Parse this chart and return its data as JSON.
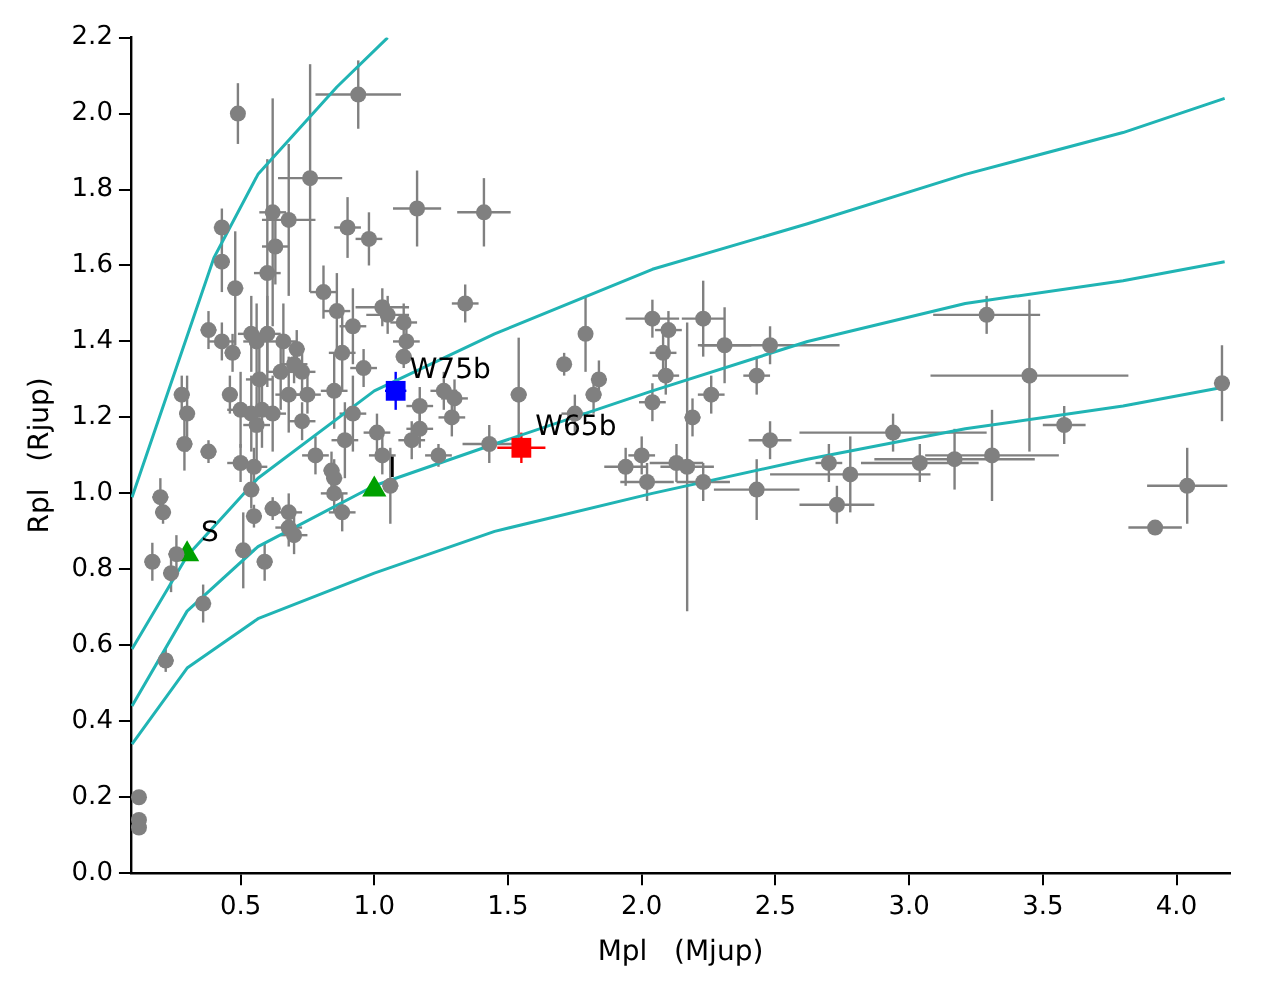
{
  "chart_data": {
    "type": "scatter",
    "xlabel": "Mpl   (Mjup)",
    "ylabel": "Rpl   (Rjup)",
    "xlim": [
      0.09,
      4.2
    ],
    "ylim": [
      0,
      2.2
    ],
    "xticks": [
      {
        "value": 0.5,
        "label": "0.5"
      },
      {
        "value": 1,
        "label": "1.0"
      },
      {
        "value": 1.5,
        "label": "1.5"
      },
      {
        "value": 2,
        "label": "2.0"
      },
      {
        "value": 2.5,
        "label": "2.5"
      },
      {
        "value": 3,
        "label": "3.0"
      },
      {
        "value": 3.5,
        "label": "3.5"
      },
      {
        "value": 4,
        "label": "4.0"
      }
    ],
    "yticks": [
      {
        "value": 0,
        "label": "0.0"
      },
      {
        "value": 0.2,
        "label": "0.2"
      },
      {
        "value": 0.4,
        "label": "0.4"
      },
      {
        "value": 0.6,
        "label": "0.6"
      },
      {
        "value": 0.8,
        "label": "0.8"
      },
      {
        "value": 1,
        "label": "1.0"
      },
      {
        "value": 1.2,
        "label": "1.2"
      },
      {
        "value": 1.4,
        "label": "1.4"
      },
      {
        "value": 1.6,
        "label": "1.6"
      },
      {
        "value": 1.8,
        "label": "1.8"
      },
      {
        "value": 2,
        "label": "2.0"
      },
      {
        "value": 2.2,
        "label": "2.2"
      }
    ],
    "grid": false,
    "legend": false,
    "series": [
      {
        "type": "line",
        "color": "#20b4b4",
        "marker": "none",
        "x": [
          0.094,
          0.4,
          0.565,
          0.86,
          1.05
        ],
        "values": [
          0.99,
          1.62,
          1.84,
          2.07,
          2.2
        ]
      },
      {
        "type": "line",
        "color": "#20b4b4",
        "marker": "none",
        "x": [
          0.094,
          0.3,
          0.565,
          1.0,
          1.45,
          2.04,
          2.62,
          3.21,
          3.8,
          4.18
        ],
        "values": [
          0.59,
          0.835,
          1.04,
          1.27,
          1.42,
          1.59,
          1.71,
          1.84,
          1.95,
          2.04
        ]
      },
      {
        "type": "line",
        "color": "#20b4b4",
        "marker": "none",
        "x": [
          0.094,
          0.3,
          0.565,
          1.0,
          1.45,
          2.04,
          2.62,
          3.21,
          3.8,
          4.18
        ],
        "values": [
          0.44,
          0.69,
          0.86,
          1.02,
          1.13,
          1.27,
          1.4,
          1.5,
          1.56,
          1.61
        ]
      },
      {
        "type": "line",
        "color": "#20b4b4",
        "marker": "none",
        "x": [
          0.094,
          0.3,
          0.565,
          1.0,
          1.45,
          2.04,
          2.62,
          3.21,
          3.8,
          4.18
        ],
        "values": [
          0.34,
          0.54,
          0.67,
          0.79,
          0.9,
          1.0,
          1.09,
          1.17,
          1.23,
          1.28
        ]
      },
      {
        "type": "scatter",
        "color": "#808080",
        "marker": "circle",
        "x": [
          0.49,
          0.94,
          0.76,
          1.16,
          1.41,
          0.43,
          0.62,
          0.68,
          0.9,
          0.98,
          0.63,
          0.43,
          0.6,
          0.48,
          0.81,
          1.34,
          0.38,
          0.86,
          1.03,
          1.05,
          0.92,
          1.11,
          0.54,
          0.56,
          0.43,
          0.47,
          0.6,
          0.66,
          0.71,
          1.12,
          1.11,
          0.88,
          0.96,
          0.7,
          0.73,
          0.65,
          0.57,
          0.46,
          0.28,
          0.68,
          0.75,
          0.85,
          1.26,
          1.3,
          0.5,
          0.54,
          0.58,
          0.62,
          0.3,
          1.17,
          1.29,
          0.92,
          1.01,
          1.17,
          1.14,
          0.56,
          0.73,
          0.29,
          0.38,
          0.78,
          0.89,
          0.5,
          0.55,
          0.84,
          0.85,
          1.03,
          1.24,
          1.43,
          1.54,
          0.54,
          0.85,
          1.06,
          0.55,
          0.62,
          0.68,
          0.88,
          0.68,
          0.7,
          0.2,
          0.21,
          0.17,
          0.26,
          0.24,
          0.51,
          0.59,
          0.36,
          0.22,
          0.12,
          0.12,
          0.12,
          1.71,
          1.79,
          1.82,
          1.84,
          1.75,
          2.04,
          2.1,
          2.23,
          2.31,
          2.08,
          2.09,
          2.04,
          2.26,
          2.19,
          2.48,
          2.43,
          2.48,
          1.94,
          2.0,
          2.02,
          2.13,
          2.17,
          2.23,
          2.43,
          2.7,
          2.73,
          2.78,
          2.94,
          3.04,
          3.17,
          3.31,
          3.29,
          3.45,
          3.58,
          4.04,
          3.92,
          4.17
        ],
        "values": [
          2.0,
          2.05,
          1.83,
          1.75,
          1.74,
          1.7,
          1.74,
          1.72,
          1.7,
          1.67,
          1.65,
          1.61,
          1.58,
          1.54,
          1.53,
          1.5,
          1.43,
          1.48,
          1.49,
          1.47,
          1.44,
          1.45,
          1.42,
          1.4,
          1.4,
          1.37,
          1.42,
          1.4,
          1.38,
          1.4,
          1.36,
          1.37,
          1.33,
          1.34,
          1.32,
          1.32,
          1.3,
          1.26,
          1.26,
          1.26,
          1.26,
          1.27,
          1.27,
          1.25,
          1.22,
          1.21,
          1.22,
          1.21,
          1.21,
          1.23,
          1.2,
          1.21,
          1.16,
          1.17,
          1.14,
          1.18,
          1.19,
          1.13,
          1.11,
          1.1,
          1.14,
          1.08,
          1.07,
          1.06,
          1.04,
          1.1,
          1.1,
          1.13,
          1.26,
          1.01,
          1.0,
          1.02,
          0.94,
          0.96,
          0.95,
          0.95,
          0.91,
          0.89,
          0.99,
          0.95,
          0.82,
          0.84,
          0.79,
          0.85,
          0.82,
          0.71,
          0.56,
          0.2,
          0.14,
          0.12,
          1.34,
          1.42,
          1.26,
          1.3,
          1.21,
          1.46,
          1.43,
          1.46,
          1.39,
          1.37,
          1.31,
          1.24,
          1.26,
          1.2,
          1.39,
          1.31,
          1.14,
          1.07,
          1.1,
          1.03,
          1.08,
          1.07,
          1.03,
          1.01,
          1.08,
          0.97,
          1.05,
          1.16,
          1.08,
          1.09,
          1.1,
          1.47,
          1.31,
          1.18,
          1.02,
          0.91,
          1.29
        ],
        "xerrors": [
          null,
          0.16,
          0.12,
          0.09,
          0.1,
          0.03,
          0.05,
          0.1,
          0.05,
          0.05,
          0.05,
          0.03,
          0.05,
          0.03,
          0.05,
          0.05,
          0.03,
          0.05,
          0.1,
          0.08,
          0.05,
          0.05,
          0.05,
          0.05,
          0.05,
          0.03,
          0.05,
          0.05,
          0.03,
          0.05,
          0.03,
          0.05,
          0.05,
          0.05,
          0.05,
          0.05,
          0.05,
          0.03,
          0.03,
          0.05,
          0.05,
          0.05,
          0.05,
          0.05,
          0.05,
          0.05,
          0.05,
          0.05,
          0.03,
          0.05,
          0.05,
          0.05,
          0.05,
          0.05,
          0.05,
          0.05,
          0.05,
          0.03,
          0.03,
          0.05,
          0.05,
          0.05,
          0.05,
          0.03,
          0.03,
          0.05,
          0.05,
          0.1,
          0.03,
          0.03,
          0.05,
          0.03,
          0.03,
          0.03,
          0.05,
          0.05,
          0.05,
          0.05,
          0.03,
          0.03,
          0.03,
          0.03,
          0.03,
          0.03,
          0.03,
          0.03,
          0.03,
          null,
          null,
          null,
          null,
          null,
          0.03,
          0.03,
          0.05,
          0.1,
          0.05,
          0.08,
          0.1,
          0.05,
          0.05,
          0.05,
          0.05,
          0.03,
          0.26,
          0.05,
          0.08,
          0.08,
          0.05,
          0.1,
          0.1,
          0.1,
          0.1,
          0.16,
          0.05,
          0.14,
          0.3,
          0.35,
          0.22,
          0.3,
          0.25,
          0.2,
          0.37,
          0.08,
          0.15,
          0.1,
          0.03
        ],
        "errors": [
          0.08,
          0.09,
          0.3,
          0.1,
          0.09,
          0.05,
          0.3,
          0.2,
          0.08,
          0.07,
          0.1,
          0.08,
          0.3,
          0.15,
          0.07,
          0.05,
          0.05,
          0.1,
          0.05,
          0.05,
          0.1,
          0.05,
          0.1,
          0.1,
          0.05,
          0.05,
          0.1,
          0.1,
          0.05,
          0.05,
          0.03,
          0.1,
          0.05,
          0.05,
          0.05,
          0.1,
          0.1,
          0.05,
          0.05,
          0.1,
          0.05,
          0.1,
          0.05,
          0.05,
          0.1,
          0.1,
          0.1,
          0.1,
          0.1,
          0.05,
          0.05,
          0.1,
          0.05,
          0.05,
          0.05,
          0.1,
          0.05,
          0.07,
          0.03,
          0.05,
          0.1,
          0.05,
          0.05,
          0.05,
          0.05,
          0.05,
          0.03,
          0.05,
          0.15,
          0.05,
          0.05,
          0.1,
          0.03,
          0.03,
          0.05,
          0.05,
          0.05,
          0.05,
          0.05,
          0.03,
          0.05,
          0.05,
          0.05,
          0.1,
          0.05,
          0.05,
          0.03,
          null,
          null,
          null,
          0.03,
          0.1,
          0.05,
          0.05,
          0.05,
          0.05,
          0.05,
          0.1,
          0.1,
          0.05,
          0.05,
          0.05,
          0.05,
          0.05,
          0.05,
          0.05,
          0.05,
          0.05,
          0.05,
          0.05,
          0.05,
          0.38,
          0.05,
          0.08,
          0.05,
          0.05,
          0.1,
          0.05,
          0.05,
          0.08,
          0.12,
          0.05,
          0.2,
          0.05,
          0.1,
          null,
          0.1
        ]
      },
      {
        "type": "scatter",
        "color": "#0000ff",
        "marker": "square",
        "x": [
          1.08
        ],
        "values": [
          1.27
        ],
        "errors": [
          0.05
        ],
        "xerrors": [
          0.04
        ]
      },
      {
        "type": "scatter",
        "color": "#ff0000",
        "marker": "square",
        "x": [
          1.55
        ],
        "values": [
          1.12
        ],
        "errors": [
          0.04
        ],
        "xerrors": [
          0.09
        ]
      },
      {
        "type": "scatter",
        "color": "#00a000",
        "marker": "triangle",
        "x": [
          0.3,
          1.0
        ],
        "values": [
          0.84,
          1.01
        ]
      }
    ],
    "annotations": [
      {
        "text": "W75b",
        "x": 1.08,
        "y": 1.27
      },
      {
        "text": "W65b",
        "x": 1.55,
        "y": 1.12
      },
      {
        "text": "S",
        "x": 0.3,
        "y": 0.84
      },
      {
        "text": "I",
        "x": 1.0,
        "y": 1.01
      }
    ]
  }
}
